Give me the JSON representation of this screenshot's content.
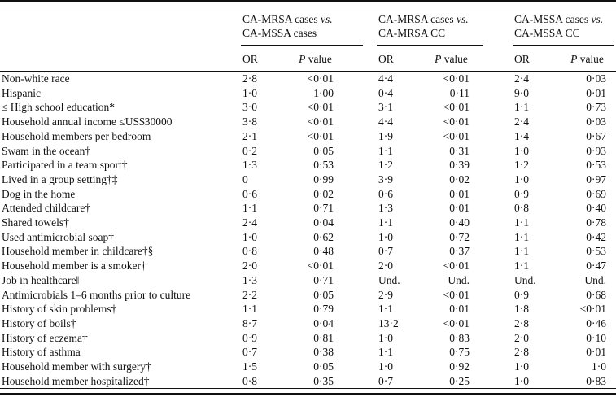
{
  "meta": {
    "background_color": "#ffffff",
    "text_color": "#111111",
    "rule_color": "#111111"
  },
  "table": {
    "groups": [
      {
        "line1": "CA-MRSA cases",
        "vs": "vs.",
        "line2": "CA-MSSA cases"
      },
      {
        "line1": "CA-MRSA cases",
        "vs": "vs.",
        "line2": "CA-MRSA CC"
      },
      {
        "line1": "CA-MSSA cases",
        "vs": "vs.",
        "line2": "CA-MSSA CC"
      }
    ],
    "subheaders": {
      "or": "OR",
      "p_italic": "P",
      "p_rest": "value"
    },
    "rows": [
      {
        "label": "Non-white race",
        "or1": "2·8",
        "p1": "<0·01",
        "or2": "4·4",
        "p2": "<0·01",
        "or3": "2·4",
        "p3": "0·03"
      },
      {
        "label": "Hispanic",
        "or1": "1·0",
        "p1": "1·00",
        "or2": "0·4",
        "p2": "0·11",
        "or3": "9·0",
        "p3": "0·01"
      },
      {
        "label": "≤ High school education*",
        "or1": "3·0",
        "p1": "<0·01",
        "or2": "3·1",
        "p2": "<0·01",
        "or3": "1·1",
        "p3": "0·73"
      },
      {
        "label": "Household annual income ≤US$30000",
        "or1": "3·8",
        "p1": "<0·01",
        "or2": "4·4",
        "p2": "<0·01",
        "or3": "2·4",
        "p3": "0·03"
      },
      {
        "label": "Household members per bedroom",
        "or1": "2·1",
        "p1": "<0·01",
        "or2": "1·9",
        "p2": "<0·01",
        "or3": "1·4",
        "p3": "0·67"
      },
      {
        "label": "Swam in the ocean†",
        "or1": "0·2",
        "p1": "0·05",
        "or2": "1·1",
        "p2": "0·31",
        "or3": "1·0",
        "p3": "0·93"
      },
      {
        "label": "Participated in a team sport†",
        "or1": "1·3",
        "p1": "0·53",
        "or2": "1·2",
        "p2": "0·39",
        "or3": "1·2",
        "p3": "0·53"
      },
      {
        "label": "Lived in a group setting†‡",
        "or1": "0",
        "p1": "0·99",
        "or2": "3·9",
        "p2": "0·02",
        "or3": "1·0",
        "p3": "0·97"
      },
      {
        "label": "Dog in the home",
        "or1": "0·6",
        "p1": "0·02",
        "or2": "0·6",
        "p2": "0·01",
        "or3": "0·9",
        "p3": "0·69"
      },
      {
        "label": "Attended childcare†",
        "or1": "1·1",
        "p1": "0·71",
        "or2": "1·3",
        "p2": "0·01",
        "or3": "0·8",
        "p3": "0·40"
      },
      {
        "label": "Shared towels†",
        "or1": "2·4",
        "p1": "0·04",
        "or2": "1·1",
        "p2": "0·40",
        "or3": "1·1",
        "p3": "0·78"
      },
      {
        "label": "Used antimicrobial soap†",
        "or1": "1·0",
        "p1": "0·62",
        "or2": "1·0",
        "p2": "0·72",
        "or3": "1·1",
        "p3": "0·42"
      },
      {
        "label": "Household member in childcare†§",
        "or1": "0·8",
        "p1": "0·48",
        "or2": "0·7",
        "p2": "0·37",
        "or3": "1·1",
        "p3": "0·53"
      },
      {
        "label": "Household member is a smoker†",
        "or1": "2·0",
        "p1": "<0·01",
        "or2": "2·0",
        "p2": "<0·01",
        "or3": "1·1",
        "p3": "0·47"
      },
      {
        "label": "Job in healthcare‖",
        "or1": "1·3",
        "p1": "0·71",
        "or2": "Und.",
        "p2": "Und.",
        "or3": "Und.",
        "p3": "Und."
      },
      {
        "label": "Antimicrobials 1–6 months prior to culture",
        "or1": "2·2",
        "p1": "0·05",
        "or2": "2·9",
        "p2": "<0·01",
        "or3": "0·9",
        "p3": "0·68"
      },
      {
        "label": "History of skin problems†",
        "or1": "1·1",
        "p1": "0·79",
        "or2": "1·1",
        "p2": "0·01",
        "or3": "1·8",
        "p3": "<0·01"
      },
      {
        "label": "History of boils†",
        "or1": "8·7",
        "p1": "0·04",
        "or2": "13·2",
        "p2": "<0·01",
        "or3": "2·8",
        "p3": "0·46"
      },
      {
        "label": "History of eczema†",
        "or1": "0·9",
        "p1": "0·81",
        "or2": "1·0",
        "p2": "0·83",
        "or3": "2·0",
        "p3": "0·10"
      },
      {
        "label": "History of asthma",
        "or1": "0·7",
        "p1": "0·38",
        "or2": "1·1",
        "p2": "0·75",
        "or3": "2·8",
        "p3": "0·01"
      },
      {
        "label": "Household member with surgery†",
        "or1": "1·5",
        "p1": "0·05",
        "or2": "1·0",
        "p2": "0·92",
        "or3": "1·0",
        "p3": "1·0"
      },
      {
        "label": "Household member hospitalized†",
        "or1": "0·8",
        "p1": "0·35",
        "or2": "0·7",
        "p2": "0·25",
        "or3": "1·0",
        "p3": "0·83"
      }
    ]
  }
}
